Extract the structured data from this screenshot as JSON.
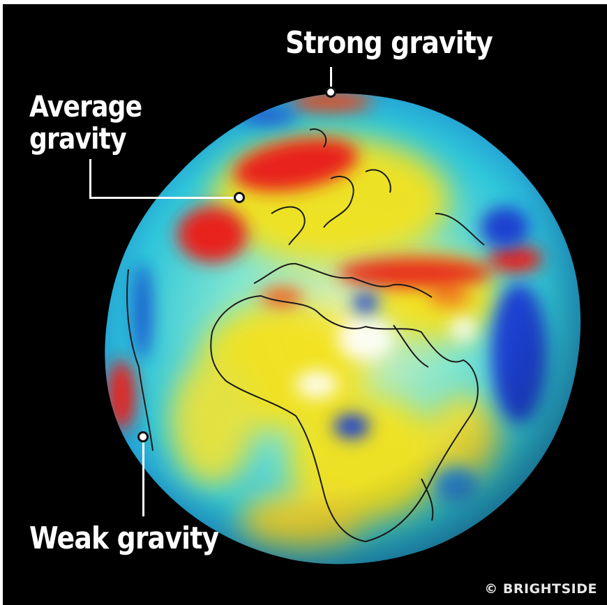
{
  "labels": {
    "strong": "Strong gravity",
    "average_line1": "Average",
    "average_line2": "gravity",
    "weak": "Weak gravity"
  },
  "watermark": "© BRIGHTSIDE",
  "colors": {
    "background": "#000000",
    "strong": "#e8201a",
    "average": "#f4e21c",
    "weak": "#1a3fd0",
    "mid": "#3fd6d8"
  }
}
